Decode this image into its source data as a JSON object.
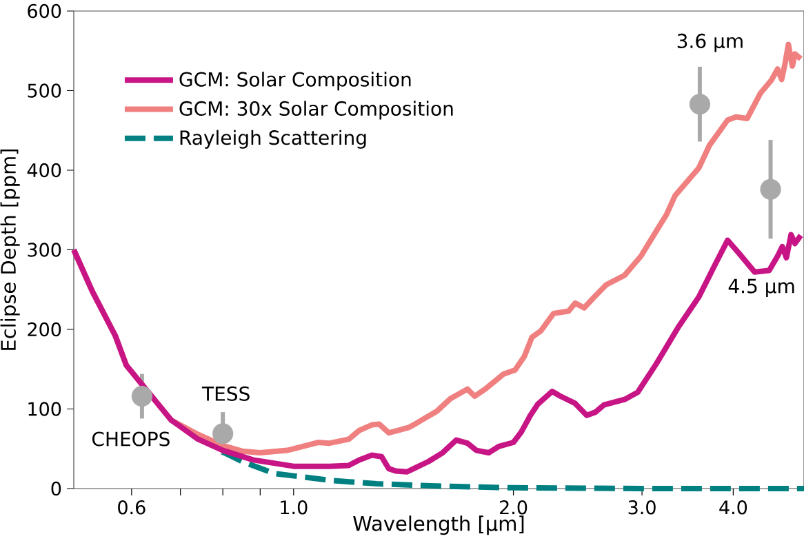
{
  "chart_data": {
    "type": "line",
    "xlabel": "Wavelength [μm]",
    "ylabel": "Eclipse Depth [ppm]",
    "log": "x",
    "xlim": [
      0.5,
      5.0
    ],
    "ylim": [
      0,
      600
    ],
    "xticks": [
      0.6,
      {
        "value": 0.7,
        "label": null
      },
      {
        "value": 0.8,
        "label": null
      },
      {
        "value": 0.9,
        "label": null
      },
      {
        "value": 1.0,
        "label": "1.0"
      },
      {
        "value": 2.0,
        "label": "2.0"
      },
      {
        "value": 3.0,
        "label": "3.0"
      },
      {
        "value": 4.0,
        "label": "4.0"
      }
    ],
    "yticks": [
      0,
      100,
      200,
      300,
      400,
      500,
      600
    ],
    "legend": "top left",
    "series": [
      {
        "name": "GCM: Solar Composition",
        "color": "#c71585",
        "x": [
          0.5,
          0.53,
          0.57,
          0.59,
          0.68,
          0.74,
          0.8,
          0.88,
          1.0,
          1.12,
          1.19,
          1.23,
          1.28,
          1.32,
          1.35,
          1.38,
          1.43,
          1.46,
          1.53,
          1.6,
          1.67,
          1.73,
          1.78,
          1.85,
          1.91,
          2.0,
          2.05,
          2.11,
          2.16,
          2.26,
          2.32,
          2.43,
          2.52,
          2.59,
          2.66,
          2.84,
          2.96,
          3.14,
          3.37,
          3.59,
          3.79,
          3.93,
          4.07,
          4.28,
          4.48,
          4.6,
          4.67,
          4.73,
          4.8,
          4.86,
          4.95
        ],
        "values": [
          300,
          248,
          192,
          155,
          86,
          62,
          48,
          36,
          28,
          28,
          29,
          36,
          42,
          40,
          25,
          22,
          21,
          25,
          34,
          45,
          61,
          57,
          48,
          45,
          53,
          58,
          71,
          92,
          106,
          122,
          116,
          107,
          92,
          96,
          105,
          112,
          121,
          157,
          204,
          241,
          284,
          312,
          296,
          272,
          274,
          292,
          304,
          290,
          319,
          308,
          318
        ]
      },
      {
        "name": "GCM: 30x Solar Composition",
        "color": "#f08080",
        "x": [
          0.5,
          0.53,
          0.57,
          0.59,
          0.68,
          0.74,
          0.8,
          0.85,
          0.9,
          0.98,
          1.04,
          1.08,
          1.12,
          1.19,
          1.23,
          1.28,
          1.31,
          1.35,
          1.39,
          1.44,
          1.46,
          1.51,
          1.57,
          1.64,
          1.73,
          1.77,
          1.83,
          1.94,
          2.01,
          2.07,
          2.12,
          2.18,
          2.27,
          2.38,
          2.43,
          2.5,
          2.57,
          2.68,
          2.84,
          2.99,
          3.16,
          3.24,
          3.33,
          3.59,
          3.71,
          3.93,
          4.04,
          4.18,
          4.36,
          4.51,
          4.6,
          4.66,
          4.71,
          4.76,
          4.82,
          4.86,
          4.95
        ],
        "values": [
          300,
          248,
          192,
          155,
          86,
          68,
          54,
          47,
          45,
          48,
          54,
          58,
          57,
          62,
          73,
          80,
          81,
          70,
          73,
          77,
          80,
          88,
          97,
          113,
          125,
          116,
          125,
          144,
          149,
          166,
          190,
          198,
          220,
          223,
          233,
          227,
          239,
          256,
          268,
          292,
          328,
          344,
          368,
          403,
          431,
          463,
          467,
          465,
          497,
          513,
          527,
          514,
          534,
          558,
          531,
          546,
          540
        ]
      },
      {
        "name": "Rayleigh Scattering",
        "color": "#008080",
        "line_style": "dashed",
        "x": [
          0.8,
          0.85,
          0.94,
          1.13,
          1.3,
          1.6,
          2.0,
          3.0,
          5.0
        ],
        "values": [
          46,
          34,
          19,
          10,
          6,
          3,
          1,
          0,
          0
        ]
      },
      {
        "type": "scatter",
        "color": "#a9a9a9",
        "marker": "circle",
        "x": [
          0.62,
          0.8,
          3.6,
          4.5
        ],
        "values": [
          116,
          69,
          483,
          376
        ],
        "errors": [
          28,
          27,
          47,
          62
        ]
      }
    ],
    "annotations": [
      {
        "text": "CHEOPS",
        "x": 0.62,
        "y": 116
      },
      {
        "text": "TESS",
        "x": 0.8,
        "y": 69
      },
      {
        "text": "3.6 μm",
        "x": 3.6,
        "y": 483
      },
      "4.5 μm"
    ]
  }
}
